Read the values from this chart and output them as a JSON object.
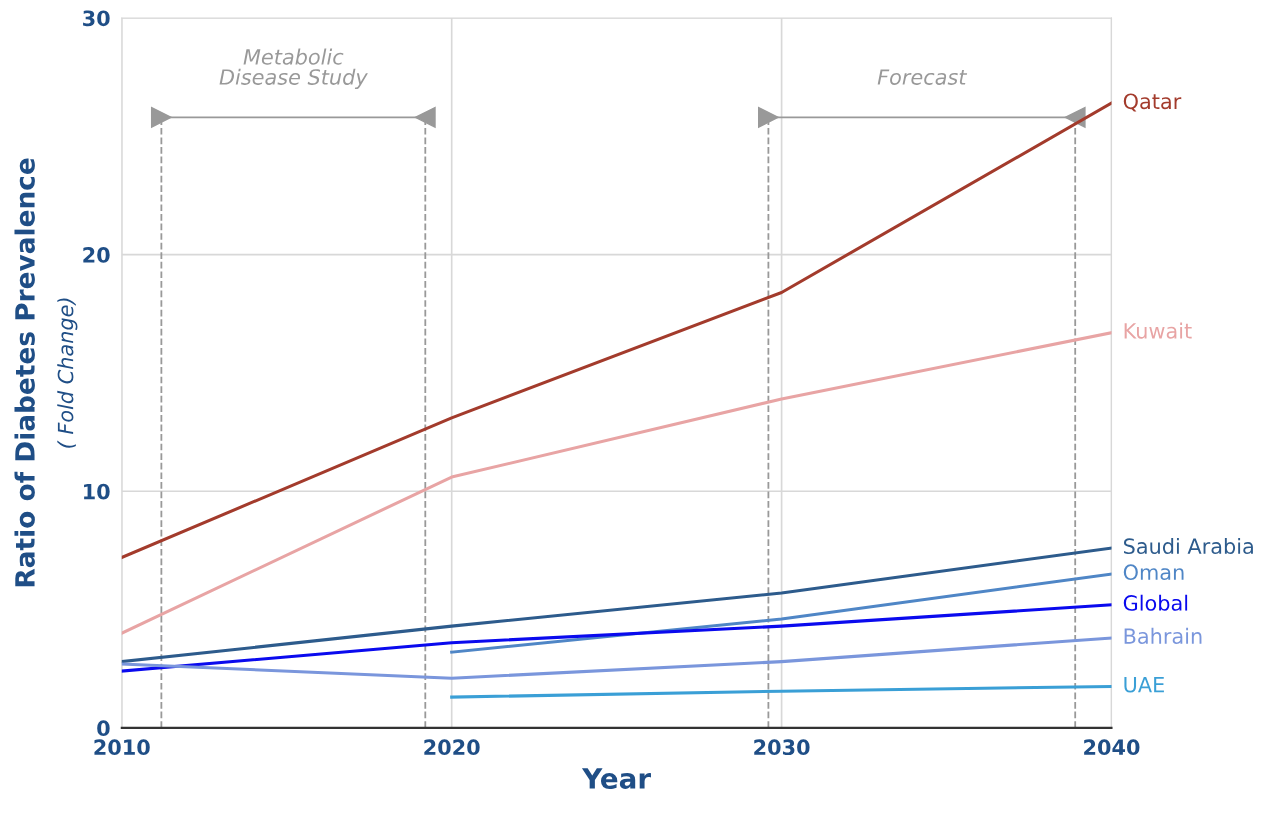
{
  "chart_data": {
    "type": "line",
    "xlabel": "Year",
    "ylabel": "Ratio of Diabetes Prevalence",
    "subtitle": "( Fold Change)",
    "x": [
      2010,
      2020,
      2030,
      2040
    ],
    "series": [
      {
        "name": "Qatar",
        "color": "#a33b2c",
        "values": [
          7.2,
          13.1,
          18.4,
          26.4
        ]
      },
      {
        "name": "Kuwait",
        "color": "#e8a4a4",
        "values": [
          4.0,
          10.6,
          13.9,
          16.7
        ]
      },
      {
        "name": "Saudi Arabia",
        "color": "#2d5b8c",
        "values": [
          2.8,
          4.3,
          5.7,
          7.6
        ]
      },
      {
        "name": "Oman",
        "color": "#4f86c6",
        "values": [
          null,
          3.2,
          4.6,
          6.5
        ]
      },
      {
        "name": "Global",
        "color": "#0a0aee",
        "values": [
          2.4,
          3.6,
          4.3,
          5.2
        ]
      },
      {
        "name": "Bahrain",
        "color": "#7a96dc",
        "values": [
          2.7,
          2.1,
          2.8,
          3.8
        ]
      },
      {
        "name": "UAE",
        "color": "#3a9fd6",
        "values": [
          null,
          1.3,
          1.55,
          1.75
        ]
      }
    ],
    "ref_lines": [
      {
        "axis": "x",
        "value": 2011.2,
        "color": "#999999",
        "line_style": "dashed"
      },
      {
        "axis": "x",
        "value": 2019.2,
        "color": "#999999",
        "line_style": "dashed"
      },
      {
        "axis": "x",
        "value": 2029.6,
        "color": "#999999",
        "line_style": "dashed"
      },
      {
        "axis": "x",
        "value": 2038.9,
        "color": "#999999",
        "line_style": "dashed"
      }
    ],
    "annotations": [
      "Metabolic\nDisease Study",
      "Forecast"
    ],
    "xlim": [
      2010,
      2040
    ],
    "xticks": [
      2010,
      2020,
      2030,
      2040
    ],
    "ylim": [
      0,
      30
    ],
    "yticks": [
      0,
      10,
      20,
      30
    ],
    "grid": true,
    "legend": false,
    "marker": "none",
    "line_style": "solid"
  }
}
